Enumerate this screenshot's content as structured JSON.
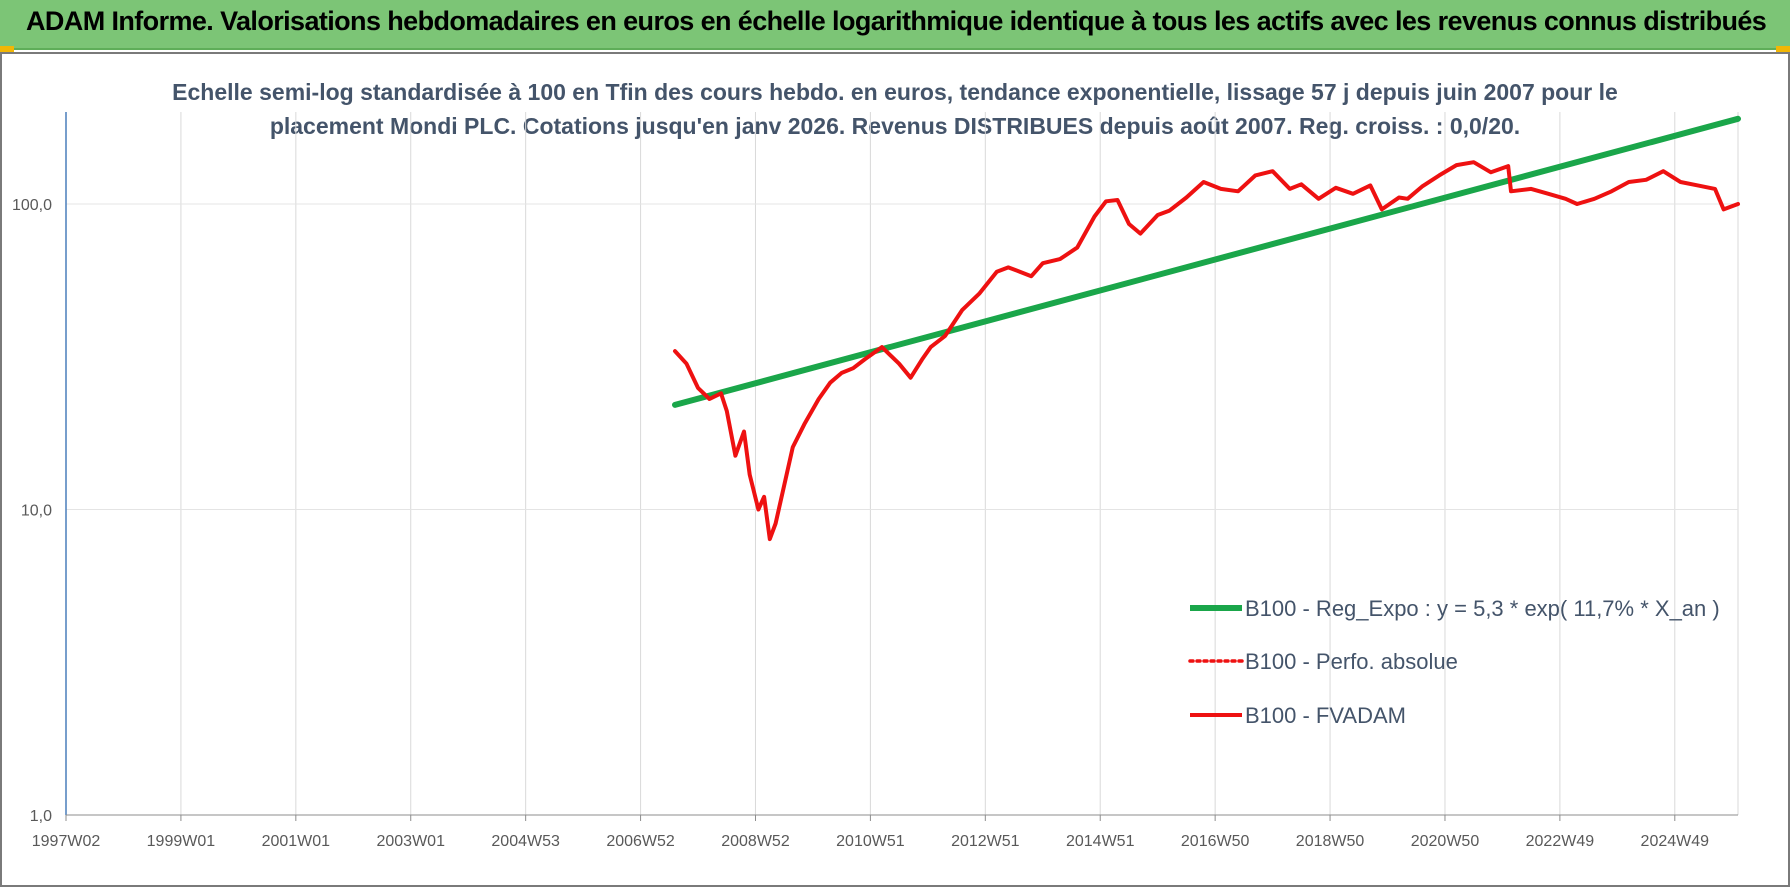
{
  "header": {
    "title": "ADAM Informe. Valorisations hebdomadaires en euros en échelle logarithmique identique à tous les actifs avec les revenus connus distribués"
  },
  "colors": {
    "banner": "#7cc576",
    "regression": "#1aa64a",
    "fvadam": "#ee1111",
    "perfo": "#ee1111",
    "text": "#44546a"
  },
  "chart_data": {
    "type": "line",
    "title_line1": "Echelle semi-log standardisée à 100 en Tfin des cours hebdo. en euros, tendance exponentielle, lissage 57 j depuis juin 2007 pour le",
    "title_line2": "placement Mondi PLC. Cotations jusqu'en janv 2026. Revenus DISTRIBUES depuis août 2007. Reg. croiss. : 0,0/20.",
    "y_scale": "log",
    "ylim": [
      1,
      200
    ],
    "y_ticks": [
      {
        "value": 1,
        "label": "1,0"
      },
      {
        "value": 10,
        "label": "10,0"
      },
      {
        "value": 100,
        "label": "100,0"
      }
    ],
    "xlim": [
      1997.0,
      2026.1
    ],
    "x_ticks": [
      {
        "label": "1997W02",
        "x": 1997.0
      },
      {
        "label": "1999W01",
        "x": 1999.0
      },
      {
        "label": "2001W01",
        "x": 2001.0
      },
      {
        "label": "2003W01",
        "x": 2003.0
      },
      {
        "label": "2004W53",
        "x": 2005.0
      },
      {
        "label": "2006W52",
        "x": 2007.0
      },
      {
        "label": "2008W52",
        "x": 2009.0
      },
      {
        "label": "2010W51",
        "x": 2011.0
      },
      {
        "label": "2012W51",
        "x": 2013.0
      },
      {
        "label": "2014W51",
        "x": 2015.0
      },
      {
        "label": "2016W50",
        "x": 2017.0
      },
      {
        "label": "2018W50",
        "x": 2019.0
      },
      {
        "label": "2020W50",
        "x": 2021.0
      },
      {
        "label": "2022W49",
        "x": 2023.0
      },
      {
        "label": "2024W49",
        "x": 2025.0
      }
    ],
    "grid": "vertical",
    "legend_position": "bottom-right",
    "series": [
      {
        "name": "B100 - Reg_Expo : y = 5,3 * exp( 11,7% *  X_an )",
        "style": "solid-thick",
        "x": [
          2007.6,
          2026.1
        ],
        "y": [
          22,
          190
        ]
      },
      {
        "name": "B100 - Perfo. absolue",
        "style": "dotted",
        "x": [],
        "y": []
      },
      {
        "name": "B100 - FVADAM",
        "style": "solid",
        "x": [
          2007.6,
          2007.8,
          2008.0,
          2008.2,
          2008.4,
          2008.5,
          2008.65,
          2008.8,
          2008.9,
          2009.05,
          2009.15,
          2009.25,
          2009.35,
          2009.5,
          2009.65,
          2009.85,
          2010.1,
          2010.3,
          2010.5,
          2010.7,
          2010.9,
          2011.2,
          2011.5,
          2011.7,
          2011.9,
          2012.05,
          2012.3,
          2012.6,
          2012.9,
          2013.2,
          2013.4,
          2013.6,
          2013.8,
          2014.0,
          2014.3,
          2014.6,
          2014.9,
          2015.1,
          2015.3,
          2015.5,
          2015.7,
          2016.0,
          2016.2,
          2016.5,
          2016.8,
          2017.1,
          2017.4,
          2017.7,
          2018.0,
          2018.3,
          2018.5,
          2018.8,
          2019.1,
          2019.4,
          2019.7,
          2019.9,
          2020.2,
          2020.35,
          2020.6,
          2020.9,
          2021.2,
          2021.5,
          2021.8,
          2022.1,
          2022.15,
          2022.5,
          2022.8,
          2023.1,
          2023.3,
          2023.6,
          2023.9,
          2024.2,
          2024.5,
          2024.8,
          2025.1,
          2025.4,
          2025.7,
          2025.85,
          2026.1
        ],
        "y": [
          33,
          30,
          25,
          23,
          24,
          21,
          15,
          18,
          13,
          10,
          11,
          8,
          9,
          12,
          16,
          19,
          23,
          26,
          28,
          29,
          31,
          34,
          30,
          27,
          31,
          34,
          37,
          45,
          51,
          60,
          62,
          60,
          58,
          64,
          66,
          72,
          91,
          102,
          103,
          86,
          80,
          92,
          95,
          105,
          118,
          112,
          110,
          124,
          128,
          112,
          116,
          104,
          113,
          108,
          115,
          96,
          105,
          104,
          114,
          124,
          134,
          137,
          127,
          133,
          110,
          112,
          108,
          104,
          100,
          104,
          110,
          118,
          120,
          128,
          118,
          115,
          112,
          96,
          100
        ]
      }
    ]
  }
}
